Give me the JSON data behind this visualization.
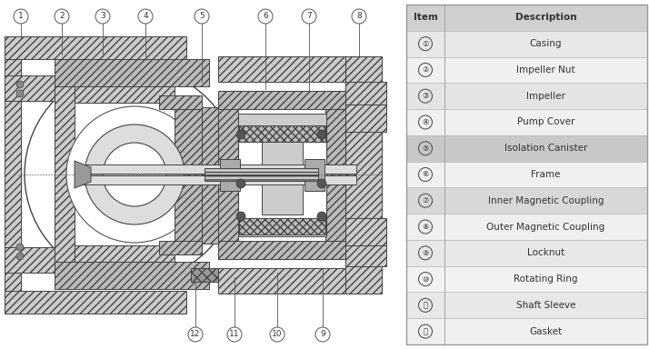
{
  "table_items": [
    {
      "item": "Item",
      "description": "Description",
      "is_header": true,
      "bg": "#d0d0d0"
    },
    {
      "item": "①",
      "description": "Casing",
      "is_header": false,
      "bg": "#e8e8e8"
    },
    {
      "item": "②",
      "description": "Impeller Nut",
      "is_header": false,
      "bg": "#f0f0f0"
    },
    {
      "item": "③",
      "description": "Impeller",
      "is_header": false,
      "bg": "#e4e4e4"
    },
    {
      "item": "④",
      "description": "Pump Cover",
      "is_header": false,
      "bg": "#f0f0f0"
    },
    {
      "item": "⑤",
      "description": "Isolation Canister",
      "is_header": false,
      "bg": "#c8c8c8"
    },
    {
      "item": "⑥",
      "description": "Frame",
      "is_header": false,
      "bg": "#f0f0f0"
    },
    {
      "item": "⑦",
      "description": "Inner Magnetic Coupling",
      "is_header": false,
      "bg": "#d8d8d8"
    },
    {
      "item": "⑧",
      "description": "Outer Magnetic Coupling",
      "is_header": false,
      "bg": "#efefef"
    },
    {
      "item": "⑨",
      "description": "Locknut",
      "is_header": false,
      "bg": "#e8e8e8"
    },
    {
      "item": "⑩",
      "description": "Rotating Ring",
      "is_header": false,
      "bg": "#f2f2f2"
    },
    {
      "item": "⑪",
      "description": "Shaft Sleeve",
      "is_header": false,
      "bg": "#e8e8e8"
    },
    {
      "item": "⑫",
      "description": "Gasket",
      "is_header": false,
      "bg": "#f0f0f0"
    }
  ],
  "top_labels": [
    "1",
    "2",
    "3",
    "4",
    "5",
    "6",
    "7",
    "8"
  ],
  "top_label_chars": [
    "①",
    "②",
    "③",
    "④",
    "⑤",
    "⑥",
    "⑦",
    "⑧"
  ],
  "bot_labels": [
    "12",
    "11",
    "10",
    "9"
  ],
  "bot_label_chars": [
    "⑫",
    "⑪",
    "⑩",
    "⑨"
  ],
  "hatch_color": "#aaaaaa",
  "line_color": "#555555",
  "bg_white": "#ffffff"
}
